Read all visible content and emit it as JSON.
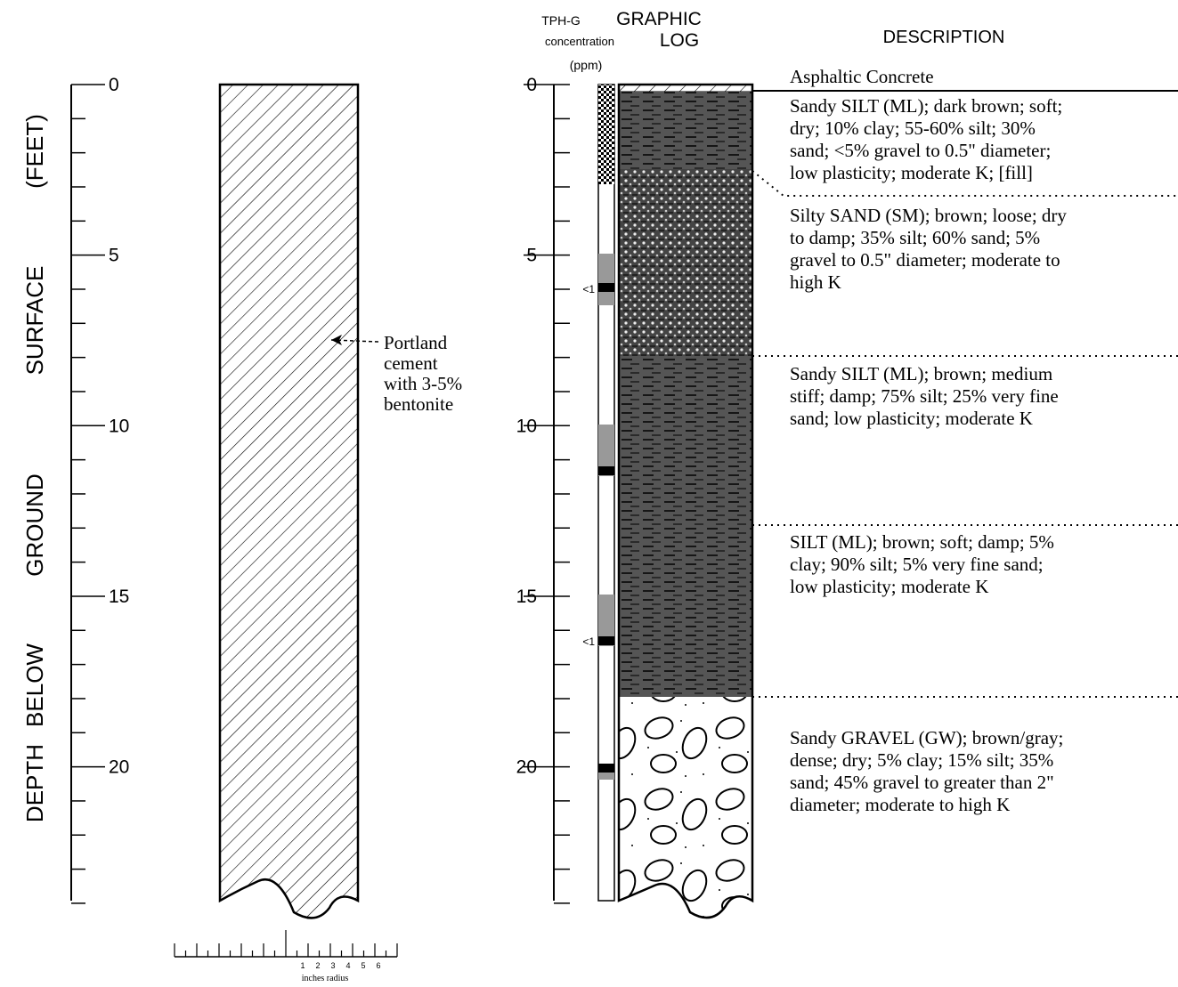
{
  "axis_title": [
    "DEPTH",
    "BELOW",
    "GROUND",
    "SURFACE",
    "(FEET)"
  ],
  "left_depth_labels": [
    "0",
    "5",
    "10",
    "15",
    "20"
  ],
  "well_annotation": [
    "Portland",
    "cement",
    "with 3-5%",
    "bentonite"
  ],
  "scale_bar": {
    "numbers": [
      "1",
      "2",
      "3",
      "4",
      "5",
      "6"
    ],
    "caption": "inches radius"
  },
  "headers": {
    "tph": [
      "TPH-G",
      "concentration",
      "(ppm)"
    ],
    "graphic_log": [
      "GRAPHIC",
      "LOG"
    ],
    "description": "DESCRIPTION"
  },
  "right_depth_labels": [
    "0",
    "5",
    "10",
    "15",
    "20"
  ],
  "tph_values": [
    "<1",
    "<1"
  ],
  "descriptions": [
    [
      "Asphaltic Concrete"
    ],
    [
      "Sandy SILT (ML); dark brown; soft;",
      "dry; 10% clay; 55-60% silt; 30%",
      "sand; <5% gravel to 0.5\" diameter;",
      "low plasticity; moderate K; [fill]"
    ],
    [
      "Silty SAND (SM); brown; loose; dry",
      "to damp; 35% silt; 60% sand; 5%",
      "gravel to 0.5\" diameter; moderate to",
      "high K"
    ],
    [
      "Sandy SILT (ML); brown; medium",
      "stiff; damp; 75% silt; 25% very fine",
      "sand; low plasticity; moderate K"
    ],
    [
      "SILT (ML); brown; soft; damp; 5%",
      "clay; 90% silt; 5% very fine sand;",
      "low plasticity; moderate K"
    ],
    [
      "Sandy GRAVEL (GW); brown/gray;",
      "dense; dry; 5% clay; 15% silt; 35%",
      "sand; 45% gravel to greater than 2\"",
      "diameter; moderate to high K"
    ]
  ]
}
